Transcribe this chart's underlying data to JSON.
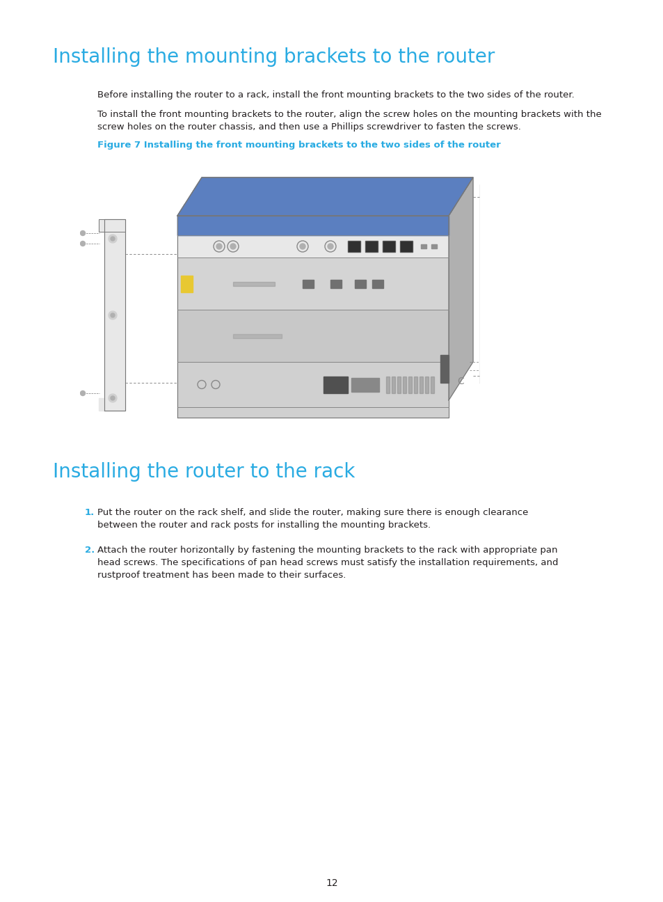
{
  "bg_color": "#ffffff",
  "heading_color": "#29abe2",
  "body_color": "#231f20",
  "figure_caption_color": "#29abe2",
  "heading1": "Installing the mounting brackets to the router",
  "para1": "Before installing the router to a rack, install the front mounting brackets to the two sides of the router.",
  "para2_line1": "To install the front mounting brackets to the router, align the screw holes on the mounting brackets with the",
  "para2_line2": "screw holes on the router chassis, and then use a Phillips screwdriver to fasten the screws.",
  "figure_caption": "Figure 7 Installing the front mounting brackets to the two sides of the router",
  "heading2": "Installing the router to the rack",
  "step1_text_line1": "Put the router on the rack shelf, and slide the router, making sure there is enough clearance",
  "step1_text_line2": "between the router and rack posts for installing the mounting brackets.",
  "step2_text_line1": "Attach the router horizontally by fastening the mounting brackets to the rack with appropriate pan",
  "step2_text_line2": "head screws. The specifications of pan head screws must satisfy the installation requirements, and",
  "step2_text_line3": "rustproof treatment has been made to their surfaces.",
  "page_number": "12"
}
